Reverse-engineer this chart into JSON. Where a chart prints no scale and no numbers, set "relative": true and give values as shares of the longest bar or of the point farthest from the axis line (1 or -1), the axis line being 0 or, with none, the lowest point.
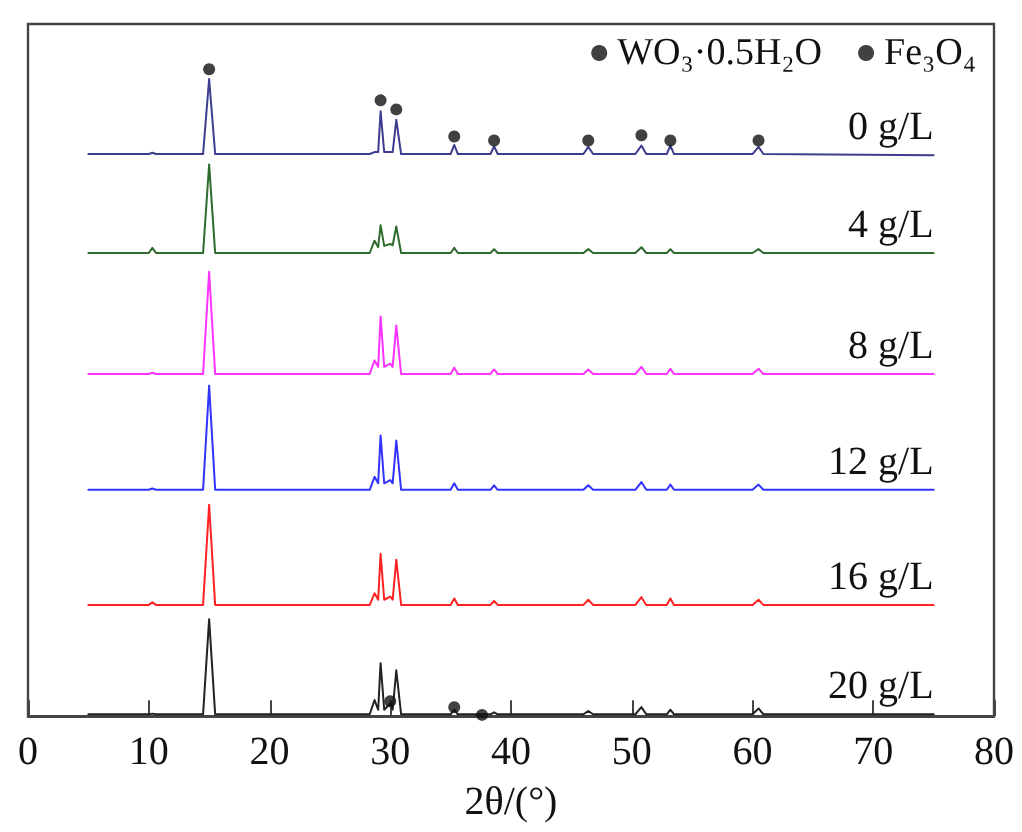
{
  "chart_data": {
    "type": "line",
    "relative": true,
    "xlabel": "2θ/(°)",
    "xlim": [
      0,
      80
    ],
    "xticks": [
      0,
      10,
      20,
      30,
      40,
      50,
      60,
      70,
      80
    ],
    "tick_labels": "x",
    "grid": false,
    "legend": "top right",
    "marker": "none",
    "x": [
      5,
      10.0,
      10.3,
      10.6,
      14.5,
      15,
      15.5,
      28.3,
      28.7,
      29.0,
      29.2,
      29.5,
      30.0,
      30.2,
      30.5,
      30.9,
      35.0,
      35.3,
      35.6,
      38.3,
      38.6,
      38.9,
      46.0,
      46.4,
      46.8,
      50.3,
      50.8,
      51.2,
      52.9,
      53.2,
      53.5,
      60.0,
      60.5,
      60.9,
      75
    ],
    "series": [
      {
        "name": "0 g/L",
        "color": "#3d3d8f",
        "values": [
          0.869,
          0.869,
          0.871,
          0.869,
          0.869,
          0.985,
          0.869,
          0.869,
          0.872,
          0.872,
          0.935,
          0.872,
          0.872,
          0.872,
          0.922,
          0.869,
          0.869,
          0.883,
          0.869,
          0.869,
          0.881,
          0.869,
          0.869,
          0.88,
          0.869,
          0.869,
          0.882,
          0.869,
          0.869,
          0.882,
          0.869,
          0.869,
          0.88,
          0.869,
          0.867
        ]
      },
      {
        "name": "4 g/L",
        "color": "#2e6b2e",
        "values": [
          0.716,
          0.716,
          0.724,
          0.716,
          0.716,
          0.853,
          0.716,
          0.716,
          0.735,
          0.725,
          0.759,
          0.727,
          0.73,
          0.728,
          0.757,
          0.716,
          0.716,
          0.724,
          0.716,
          0.716,
          0.722,
          0.716,
          0.716,
          0.722,
          0.716,
          0.716,
          0.725,
          0.716,
          0.716,
          0.722,
          0.716,
          0.716,
          0.722,
          0.716,
          0.716
        ]
      },
      {
        "name": "8 g/L",
        "color": "#ff33ff",
        "values": [
          0.529,
          0.529,
          0.531,
          0.529,
          0.529,
          0.687,
          0.529,
          0.529,
          0.55,
          0.54,
          0.618,
          0.54,
          0.545,
          0.54,
          0.604,
          0.529,
          0.529,
          0.539,
          0.529,
          0.529,
          0.536,
          0.529,
          0.529,
          0.536,
          0.529,
          0.529,
          0.54,
          0.529,
          0.529,
          0.537,
          0.529,
          0.529,
          0.537,
          0.529,
          0.529
        ]
      },
      {
        "name": "12 g/L",
        "color": "#3333ff",
        "values": [
          0.35,
          0.35,
          0.352,
          0.35,
          0.35,
          0.511,
          0.35,
          0.35,
          0.37,
          0.36,
          0.434,
          0.36,
          0.365,
          0.36,
          0.426,
          0.35,
          0.35,
          0.36,
          0.35,
          0.35,
          0.357,
          0.35,
          0.35,
          0.357,
          0.35,
          0.35,
          0.362,
          0.35,
          0.35,
          0.358,
          0.35,
          0.35,
          0.358,
          0.35,
          0.35
        ]
      },
      {
        "name": "16 g/L",
        "color": "#ff2222",
        "values": [
          0.172,
          0.172,
          0.176,
          0.172,
          0.172,
          0.327,
          0.172,
          0.172,
          0.19,
          0.18,
          0.251,
          0.18,
          0.185,
          0.18,
          0.242,
          0.172,
          0.172,
          0.182,
          0.172,
          0.172,
          0.178,
          0.172,
          0.172,
          0.18,
          0.172,
          0.172,
          0.184,
          0.172,
          0.172,
          0.182,
          0.172,
          0.172,
          0.18,
          0.172,
          0.172
        ]
      },
      {
        "name": "20 g/L",
        "color": "#222222",
        "values": [
          0.003,
          0.003,
          0.004,
          0.003,
          0.003,
          0.15,
          0.003,
          0.003,
          0.025,
          0.01,
          0.082,
          0.01,
          0.02,
          0.01,
          0.071,
          0.003,
          0.003,
          0.01,
          0.003,
          0.003,
          0.006,
          0.003,
          0.003,
          0.008,
          0.003,
          0.003,
          0.014,
          0.003,
          0.003,
          0.01,
          0.003,
          0.003,
          0.012,
          0.003,
          0.003
        ]
      },
      {
        "name": "WO₃·0.5H₂O",
        "type": "scatter",
        "marker": "circle",
        "color": "#111111",
        "x": [
          15,
          29.2,
          30.5,
          35.3,
          38.6,
          46.4,
          50.8,
          53.2,
          60.5
        ],
        "values": [
          1.0,
          0.952,
          0.938,
          0.896,
          0.89,
          0.89,
          0.898,
          0.89,
          0.89
        ]
      },
      {
        "name": "Fe₃O₄",
        "type": "scatter",
        "marker": "circle",
        "color": "#111111",
        "x": [
          30.0,
          35.3,
          37.6
        ],
        "values": [
          0.023,
          0.014,
          0.002
        ]
      }
    ]
  }
}
